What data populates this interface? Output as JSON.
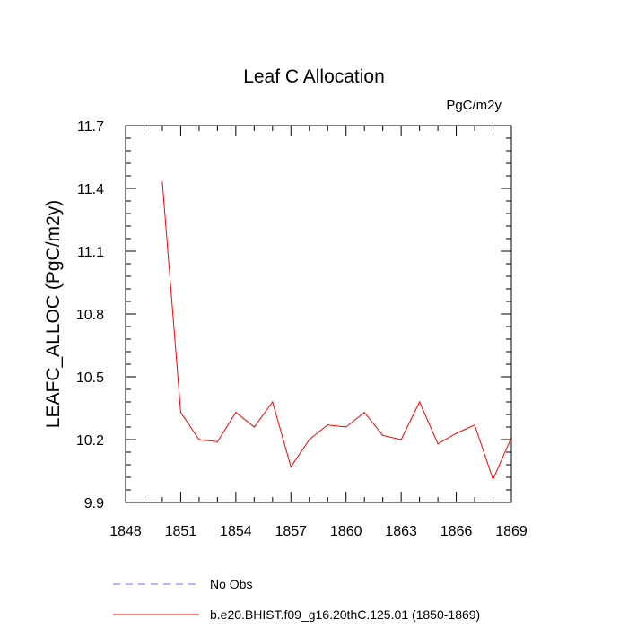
{
  "chart_data": {
    "type": "line",
    "title": "Leaf C Allocation",
    "units_label": "PgC/m2y",
    "ylabel": "LEAFC_ALLOC  (PgC/m2y)",
    "xlabel": "",
    "xlim": [
      1848,
      1869
    ],
    "ylim": [
      9.9,
      11.7
    ],
    "x_ticks": [
      1848,
      1851,
      1854,
      1857,
      1860,
      1863,
      1866,
      1869
    ],
    "y_ticks": [
      "9.9",
      "10.2",
      "10.5",
      "10.8",
      "11.1",
      "11.4",
      "11.7"
    ],
    "series": [
      {
        "name": "No Obs",
        "color": "#6a6aff",
        "dash": "dashed",
        "x": [],
        "values": []
      },
      {
        "name": "b.e20.BHIST.f09_g16.20thC.125.01 (1850-1869)",
        "color": "#ff0000",
        "dash": "solid",
        "x": [
          1850,
          1851,
          1852,
          1853,
          1854,
          1855,
          1856,
          1857,
          1858,
          1859,
          1860,
          1861,
          1862,
          1863,
          1864,
          1865,
          1866,
          1867,
          1868,
          1869
        ],
        "values": [
          11.43,
          10.33,
          10.2,
          10.19,
          10.33,
          10.26,
          10.38,
          10.07,
          10.2,
          10.27,
          10.26,
          10.33,
          10.22,
          10.2,
          10.38,
          10.18,
          10.23,
          10.27,
          10.01,
          10.21
        ]
      }
    ],
    "legend": {
      "placement": "below-plot"
    }
  }
}
